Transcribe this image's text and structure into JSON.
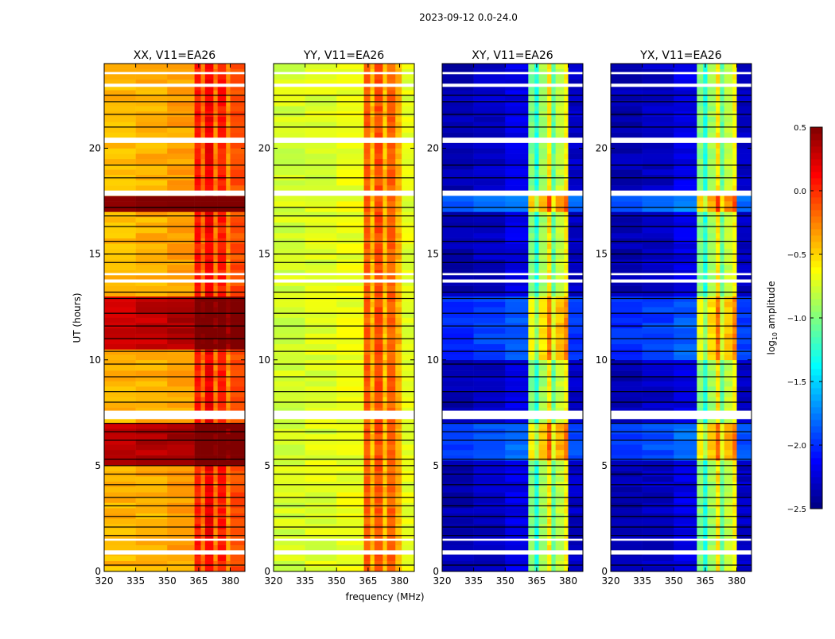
{
  "chart_data": {
    "type": "heatmap",
    "title": "2023-09-12 0.0-24.0",
    "xlabel": "frequency (MHz)",
    "ylabel": "UT (hours)",
    "xlim": [
      320,
      387
    ],
    "ylim": [
      0,
      24
    ],
    "xticks": [
      320,
      335,
      350,
      365,
      380
    ],
    "yticks": [
      0,
      5,
      10,
      15,
      20
    ],
    "colorbar": {
      "label_prefix": "log",
      "label_sub": "10",
      "label_suffix": " amplitude",
      "range": [
        -2.5,
        0.5
      ],
      "ticks": [
        "0.5",
        "0.0",
        "−0.5",
        "−1.0",
        "−1.5",
        "−2.0",
        "−2.5"
      ],
      "tick_values": [
        0.5,
        0.0,
        -0.5,
        -1.0,
        -1.5,
        -2.0,
        -2.5
      ],
      "colormap": "jet"
    },
    "flagged_white_hours": [
      [
        0.8,
        1.0
      ],
      [
        1.45,
        1.55
      ],
      [
        7.2,
        7.6
      ],
      [
        13.65,
        13.8
      ],
      [
        14.0,
        14.1
      ],
      [
        17.75,
        18.0
      ],
      [
        20.25,
        20.5
      ],
      [
        22.9,
        23.05
      ],
      [
        23.5,
        23.6
      ]
    ],
    "black_line_hours": [
      0.3,
      1.7,
      2.1,
      2.6,
      3.1,
      3.5,
      4.1,
      4.6,
      5.0,
      5.3,
      6.2,
      6.6,
      7.0,
      8.0,
      8.5,
      9.2,
      9.8,
      10.4,
      11.0,
      11.6,
      12.2,
      12.9,
      13.2,
      14.6,
      15.0,
      15.6,
      16.3,
      16.8,
      17.2,
      18.6,
      19.2,
      21.0,
      21.6,
      22.2,
      22.5
    ],
    "panels": [
      {
        "title": "XX, V11=EA26",
        "freq_profile": [
          [
            320,
            335,
            -0.42
          ],
          [
            335,
            350,
            -0.4
          ],
          [
            350,
            363,
            -0.35
          ],
          [
            363,
            366,
            0.05
          ],
          [
            366,
            368,
            -0.2
          ],
          [
            368,
            372,
            0.15
          ],
          [
            372,
            374,
            -0.25
          ],
          [
            374,
            378,
            0.05
          ],
          [
            378,
            380,
            -0.3
          ],
          [
            380,
            387,
            -0.1
          ]
        ],
        "time_offsets": [
          [
            4.9,
            7.0,
            0.75
          ],
          [
            10.5,
            13.0,
            0.7
          ],
          [
            17.0,
            17.7,
            0.9
          ]
        ]
      },
      {
        "title": "YY, V11=EA26",
        "freq_profile": [
          [
            320,
            335,
            -0.75
          ],
          [
            335,
            350,
            -0.72
          ],
          [
            350,
            363,
            -0.68
          ],
          [
            363,
            366,
            -0.15
          ],
          [
            366,
            368,
            -0.45
          ],
          [
            368,
            372,
            -0.1
          ],
          [
            372,
            374,
            -0.45
          ],
          [
            374,
            378,
            -0.15
          ],
          [
            378,
            381,
            -0.4
          ],
          [
            381,
            387,
            -0.7
          ]
        ],
        "time_offsets": []
      },
      {
        "title": "XY, V11=EA26",
        "freq_profile": [
          [
            320,
            335,
            -2.35
          ],
          [
            335,
            350,
            -2.3
          ],
          [
            350,
            361,
            -2.2
          ],
          [
            361,
            364,
            -1.0
          ],
          [
            364,
            366,
            -1.3
          ],
          [
            366,
            370,
            -0.9
          ],
          [
            370,
            372,
            -0.55
          ],
          [
            372,
            374,
            -1.1
          ],
          [
            374,
            378,
            -0.8
          ],
          [
            378,
            380,
            -0.6
          ],
          [
            380,
            387,
            -2.3
          ]
        ],
        "time_offsets": [
          [
            5.3,
            7.0,
            0.4
          ],
          [
            10.0,
            13.0,
            0.35
          ],
          [
            16.9,
            18.0,
            0.5
          ]
        ]
      },
      {
        "title": "YX, V11=EA26",
        "freq_profile": [
          [
            320,
            335,
            -2.35
          ],
          [
            335,
            350,
            -2.3
          ],
          [
            350,
            361,
            -2.2
          ],
          [
            361,
            364,
            -1.0
          ],
          [
            364,
            366,
            -1.3
          ],
          [
            366,
            370,
            -0.9
          ],
          [
            370,
            372,
            -0.55
          ],
          [
            372,
            374,
            -1.1
          ],
          [
            374,
            378,
            -0.8
          ],
          [
            378,
            380,
            -0.6
          ],
          [
            380,
            387,
            -2.3
          ]
        ],
        "time_offsets": [
          [
            5.3,
            7.0,
            0.4
          ],
          [
            10.0,
            13.0,
            0.35
          ],
          [
            16.9,
            18.0,
            0.5
          ]
        ]
      }
    ]
  }
}
